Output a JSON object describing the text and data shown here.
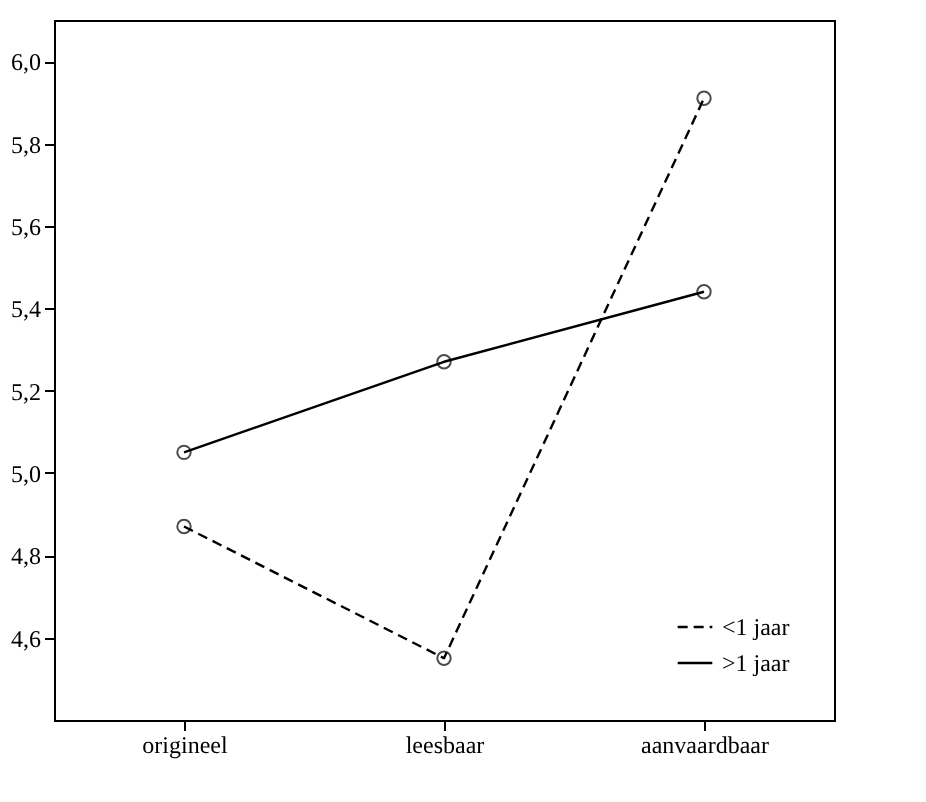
{
  "chart_data": {
    "type": "line",
    "categories": [
      "origineel",
      "leesbaar",
      "aanvaardbaar"
    ],
    "series": [
      {
        "name": "<1 jaar",
        "color": "#000000",
        "line_style": "dashed",
        "values": [
          4.87,
          4.55,
          5.91
        ]
      },
      {
        "name": ">1 jaar",
        "color": "#000000",
        "line_style": "solid",
        "values": [
          5.05,
          5.27,
          5.44
        ]
      }
    ],
    "ylim": [
      4.4,
      6.1
    ],
    "yticks": [
      {
        "value": 4.6,
        "label": "4,6"
      },
      {
        "value": 4.8,
        "label": "4,8"
      },
      {
        "value": 5.0,
        "label": "5,0"
      },
      {
        "value": 5.2,
        "label": "5,2"
      },
      {
        "value": 5.4,
        "label": "5,4"
      },
      {
        "value": 5.6,
        "label": "5,6"
      },
      {
        "value": 5.8,
        "label": "5,8"
      },
      {
        "value": 6.0,
        "label": "6,0"
      }
    ],
    "marker": "circle",
    "grid": false,
    "legend": "bottom right"
  }
}
